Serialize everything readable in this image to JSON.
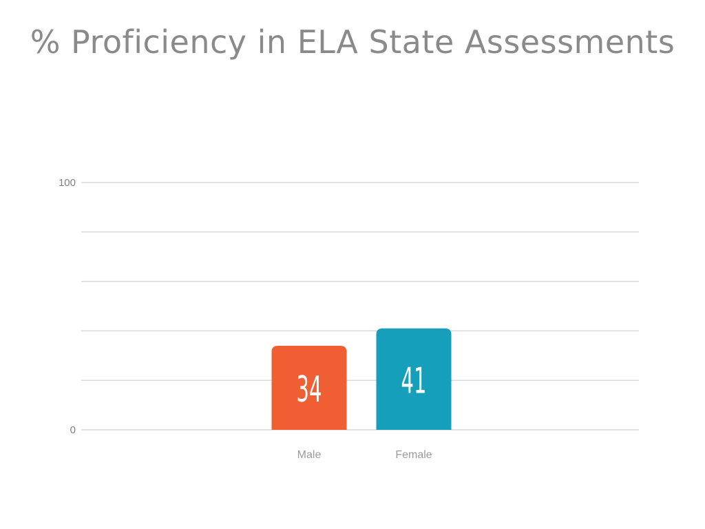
{
  "chart_data": {
    "type": "bar",
    "title": "% Proficiency in ELA State Assessments",
    "categories": [
      "Male",
      "Female"
    ],
    "values": [
      34,
      41
    ],
    "colors": [
      "#f05f34",
      "#159fbb"
    ],
    "data_labels": [
      "34",
      "41"
    ],
    "ylim": [
      0,
      100
    ],
    "yticks": [
      "0",
      "100"
    ],
    "gridlines": 5,
    "grid": true,
    "xlabel": "",
    "ylabel": ""
  }
}
